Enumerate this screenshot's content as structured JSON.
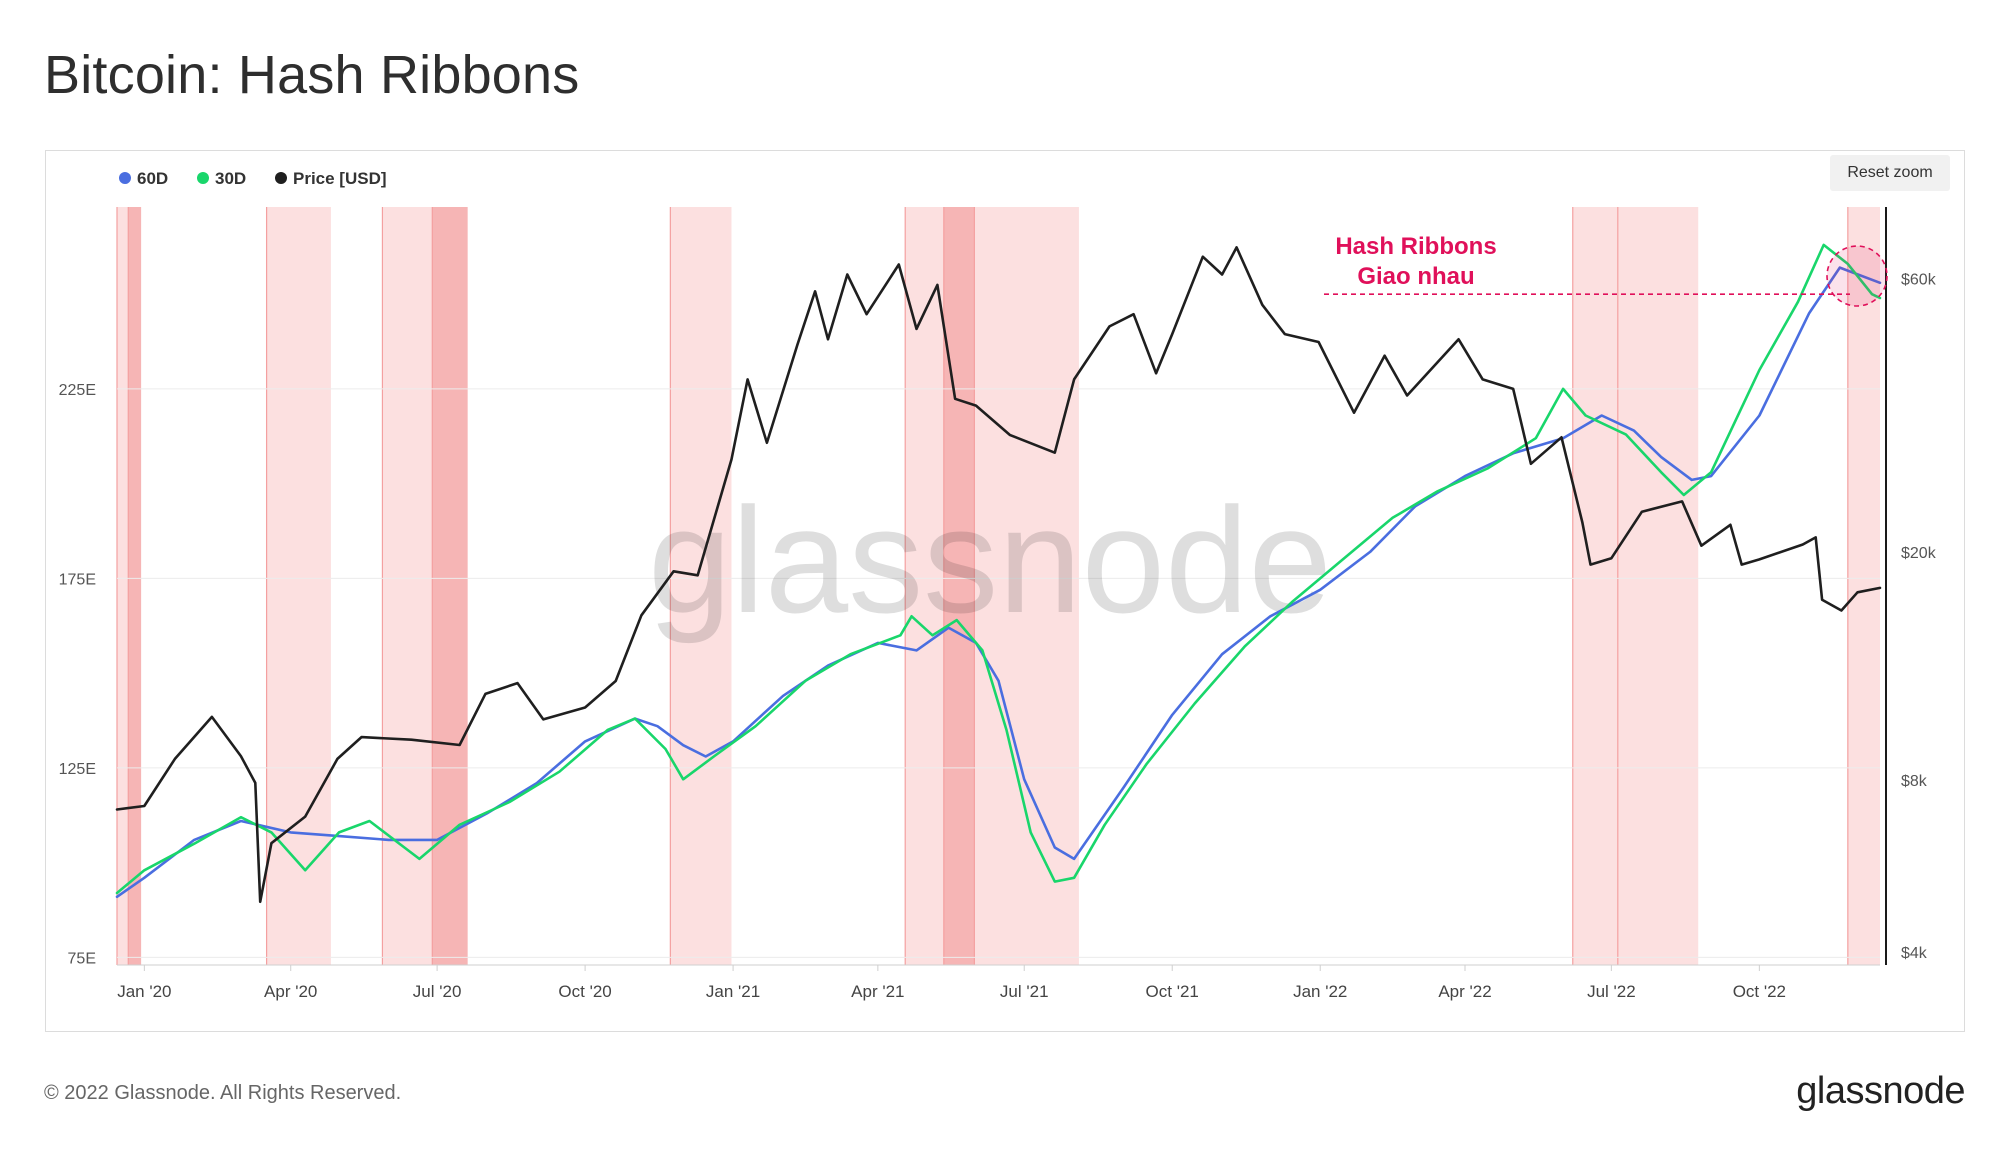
{
  "title": "Bitcoin: Hash Ribbons",
  "reset_zoom_label": "Reset zoom",
  "footer": {
    "copyright": "© 2022 Glassnode. All Rights Reserved.",
    "logo": "glassnode"
  },
  "watermark": "glassnode",
  "colors": {
    "ma60": "#4a6ee0",
    "ma30": "#19d66b",
    "price": "#1f1f1f",
    "band": "#fbd5d5",
    "band_strong": "#f5a8a8",
    "annotation": "#e0105a"
  },
  "chart_data": {
    "type": "line",
    "legend": [
      {
        "name": "60D",
        "color": "#4a6ee0"
      },
      {
        "name": "30D",
        "color": "#19d66b"
      },
      {
        "name": "Price [USD]",
        "color": "#1f1f1f"
      }
    ],
    "legend_position": "top-left",
    "x_ticks": [
      "Jan '20",
      "Apr '20",
      "Jul '20",
      "Oct '20",
      "Jan '21",
      "Apr '21",
      "Jul '21",
      "Oct '21",
      "Jan '22",
      "Apr '22",
      "Jul '22",
      "Oct '22"
    ],
    "x_range": [
      "2019-12-15",
      "2022-12-15"
    ],
    "y_left": {
      "ticks": [
        "75E",
        "125E",
        "175E",
        "225E"
      ],
      "values": [
        75,
        125,
        175,
        225
      ],
      "range": [
        73,
        273
      ]
    },
    "y_right": {
      "ticks": [
        "$4k",
        "$8k",
        "$20k",
        "$60k"
      ],
      "values": [
        4000,
        8000,
        20000,
        60000
      ],
      "scale": "log",
      "range": [
        3800,
        80000
      ]
    },
    "annotation": {
      "line1": "Hash Ribbons",
      "line2": "Giao nhau",
      "y_value": 250
    },
    "capitulation_bands": [
      {
        "start": "2019-12-15",
        "end": "2019-12-22",
        "strong": false
      },
      {
        "start": "2019-12-22",
        "end": "2019-12-30",
        "strong": true
      },
      {
        "start": "2020-03-17",
        "end": "2020-04-26",
        "strong": false
      },
      {
        "start": "2020-05-28",
        "end": "2020-06-28",
        "strong": false
      },
      {
        "start": "2020-06-28",
        "end": "2020-07-20",
        "strong": true
      },
      {
        "start": "2020-11-23",
        "end": "2020-12-31",
        "strong": false
      },
      {
        "start": "2021-04-18",
        "end": "2021-05-12",
        "strong": false
      },
      {
        "start": "2021-05-12",
        "end": "2021-05-31",
        "strong": true
      },
      {
        "start": "2021-05-31",
        "end": "2021-08-04",
        "strong": false
      },
      {
        "start": "2022-06-07",
        "end": "2022-07-05",
        "strong": false
      },
      {
        "start": "2022-07-05",
        "end": "2022-08-24",
        "strong": false
      },
      {
        "start": "2022-11-25",
        "end": "2022-12-15",
        "strong": false
      }
    ],
    "series": [
      {
        "name": "60D",
        "axis": "left",
        "points": [
          [
            "2019-12-15",
            91
          ],
          [
            "2020-01-01",
            96
          ],
          [
            "2020-02-01",
            106
          ],
          [
            "2020-03-01",
            111
          ],
          [
            "2020-04-01",
            108
          ],
          [
            "2020-05-01",
            107
          ],
          [
            "2020-06-01",
            106
          ],
          [
            "2020-07-01",
            106
          ],
          [
            "2020-08-01",
            113
          ],
          [
            "2020-09-01",
            121
          ],
          [
            "2020-10-01",
            132
          ],
          [
            "2020-11-01",
            138
          ],
          [
            "2020-11-15",
            136
          ],
          [
            "2020-12-01",
            131
          ],
          [
            "2020-12-15",
            128
          ],
          [
            "2021-01-01",
            132
          ],
          [
            "2021-02-01",
            144
          ],
          [
            "2021-03-01",
            152
          ],
          [
            "2021-04-01",
            158
          ],
          [
            "2021-04-25",
            156
          ],
          [
            "2021-05-15",
            162
          ],
          [
            "2021-06-01",
            158
          ],
          [
            "2021-06-15",
            148
          ],
          [
            "2021-07-01",
            122
          ],
          [
            "2021-07-20",
            104
          ],
          [
            "2021-08-01",
            101
          ],
          [
            "2021-09-01",
            120
          ],
          [
            "2021-10-01",
            139
          ],
          [
            "2021-11-01",
            155
          ],
          [
            "2021-12-01",
            165
          ],
          [
            "2022-01-01",
            172
          ],
          [
            "2022-02-01",
            182
          ],
          [
            "2022-03-01",
            194
          ],
          [
            "2022-04-01",
            202
          ],
          [
            "2022-05-01",
            208
          ],
          [
            "2022-06-01",
            212
          ],
          [
            "2022-06-25",
            218
          ],
          [
            "2022-07-15",
            214
          ],
          [
            "2022-08-01",
            207
          ],
          [
            "2022-08-20",
            201
          ],
          [
            "2022-09-01",
            202
          ],
          [
            "2022-10-01",
            218
          ],
          [
            "2022-11-01",
            245
          ],
          [
            "2022-11-20",
            257
          ],
          [
            "2022-12-15",
            253
          ]
        ]
      },
      {
        "name": "30D",
        "axis": "left",
        "points": [
          [
            "2019-12-15",
            92
          ],
          [
            "2020-01-01",
            98
          ],
          [
            "2020-02-01",
            105
          ],
          [
            "2020-03-01",
            112
          ],
          [
            "2020-03-20",
            108
          ],
          [
            "2020-04-10",
            98
          ],
          [
            "2020-05-01",
            108
          ],
          [
            "2020-05-20",
            111
          ],
          [
            "2020-06-20",
            101
          ],
          [
            "2020-07-15",
            110
          ],
          [
            "2020-08-15",
            116
          ],
          [
            "2020-09-15",
            124
          ],
          [
            "2020-10-15",
            135
          ],
          [
            "2020-11-01",
            138
          ],
          [
            "2020-11-20",
            130
          ],
          [
            "2020-12-01",
            122
          ],
          [
            "2020-12-20",
            128
          ],
          [
            "2021-01-15",
            136
          ],
          [
            "2021-02-15",
            148
          ],
          [
            "2021-03-15",
            155
          ],
          [
            "2021-04-15",
            160
          ],
          [
            "2021-04-22",
            165
          ],
          [
            "2021-05-05",
            160
          ],
          [
            "2021-05-20",
            164
          ],
          [
            "2021-06-05",
            156
          ],
          [
            "2021-06-20",
            135
          ],
          [
            "2021-07-05",
            108
          ],
          [
            "2021-07-20",
            95
          ],
          [
            "2021-08-01",
            96
          ],
          [
            "2021-08-20",
            110
          ],
          [
            "2021-09-15",
            126
          ],
          [
            "2021-10-15",
            142
          ],
          [
            "2021-11-15",
            157
          ],
          [
            "2021-12-15",
            169
          ],
          [
            "2022-01-15",
            180
          ],
          [
            "2022-02-15",
            191
          ],
          [
            "2022-03-15",
            198
          ],
          [
            "2022-04-15",
            204
          ],
          [
            "2022-05-15",
            212
          ],
          [
            "2022-06-01",
            225
          ],
          [
            "2022-06-15",
            218
          ],
          [
            "2022-07-10",
            213
          ],
          [
            "2022-08-01",
            203
          ],
          [
            "2022-08-15",
            197
          ],
          [
            "2022-09-01",
            203
          ],
          [
            "2022-10-01",
            230
          ],
          [
            "2022-10-25",
            248
          ],
          [
            "2022-11-10",
            263
          ],
          [
            "2022-11-25",
            258
          ],
          [
            "2022-12-10",
            250
          ],
          [
            "2022-12-15",
            249
          ]
        ]
      },
      {
        "name": "Price [USD]",
        "axis": "right",
        "points": [
          [
            "2019-12-15",
            7100
          ],
          [
            "2020-01-01",
            7200
          ],
          [
            "2020-01-20",
            8700
          ],
          [
            "2020-02-12",
            10300
          ],
          [
            "2020-03-01",
            8800
          ],
          [
            "2020-03-10",
            7900
          ],
          [
            "2020-03-13",
            4900
          ],
          [
            "2020-03-20",
            6200
          ],
          [
            "2020-04-10",
            6900
          ],
          [
            "2020-04-30",
            8700
          ],
          [
            "2020-05-15",
            9500
          ],
          [
            "2020-06-15",
            9400
          ],
          [
            "2020-07-15",
            9200
          ],
          [
            "2020-07-31",
            11300
          ],
          [
            "2020-08-20",
            11800
          ],
          [
            "2020-09-05",
            10200
          ],
          [
            "2020-10-01",
            10700
          ],
          [
            "2020-10-20",
            11900
          ],
          [
            "2020-11-05",
            15500
          ],
          [
            "2020-11-25",
            18500
          ],
          [
            "2020-12-10",
            18200
          ],
          [
            "2020-12-31",
            29000
          ],
          [
            "2021-01-10",
            40000
          ],
          [
            "2021-01-22",
            31000
          ],
          [
            "2021-02-10",
            46000
          ],
          [
            "2021-02-21",
            57000
          ],
          [
            "2021-03-01",
            47000
          ],
          [
            "2021-03-13",
            61000
          ],
          [
            "2021-03-25",
            52000
          ],
          [
            "2021-04-14",
            63500
          ],
          [
            "2021-04-25",
            49000
          ],
          [
            "2021-05-08",
            58500
          ],
          [
            "2021-05-19",
            37000
          ],
          [
            "2021-06-01",
            36000
          ],
          [
            "2021-06-22",
            32000
          ],
          [
            "2021-07-20",
            29800
          ],
          [
            "2021-08-01",
            40000
          ],
          [
            "2021-08-23",
            49500
          ],
          [
            "2021-09-07",
            52000
          ],
          [
            "2021-09-21",
            41000
          ],
          [
            "2021-10-01",
            48000
          ],
          [
            "2021-10-20",
            65500
          ],
          [
            "2021-11-01",
            61000
          ],
          [
            "2021-11-10",
            68000
          ],
          [
            "2021-11-26",
            54000
          ],
          [
            "2021-12-10",
            48000
          ],
          [
            "2021-12-31",
            46500
          ],
          [
            "2022-01-22",
            35000
          ],
          [
            "2022-02-10",
            44000
          ],
          [
            "2022-02-24",
            37500
          ],
          [
            "2022-03-28",
            47000
          ],
          [
            "2022-04-12",
            40000
          ],
          [
            "2022-05-01",
            38500
          ],
          [
            "2022-05-12",
            28500
          ],
          [
            "2022-05-31",
            31700
          ],
          [
            "2022-06-13",
            22500
          ],
          [
            "2022-06-18",
            19000
          ],
          [
            "2022-07-01",
            19500
          ],
          [
            "2022-07-20",
            23500
          ],
          [
            "2022-08-14",
            24500
          ],
          [
            "2022-08-26",
            20500
          ],
          [
            "2022-09-13",
            22300
          ],
          [
            "2022-09-20",
            19000
          ],
          [
            "2022-10-01",
            19400
          ],
          [
            "2022-10-28",
            20600
          ],
          [
            "2022-11-05",
            21200
          ],
          [
            "2022-11-09",
            16500
          ],
          [
            "2022-11-21",
            15800
          ],
          [
            "2022-12-01",
            17000
          ],
          [
            "2022-12-15",
            17300
          ]
        ]
      }
    ]
  }
}
